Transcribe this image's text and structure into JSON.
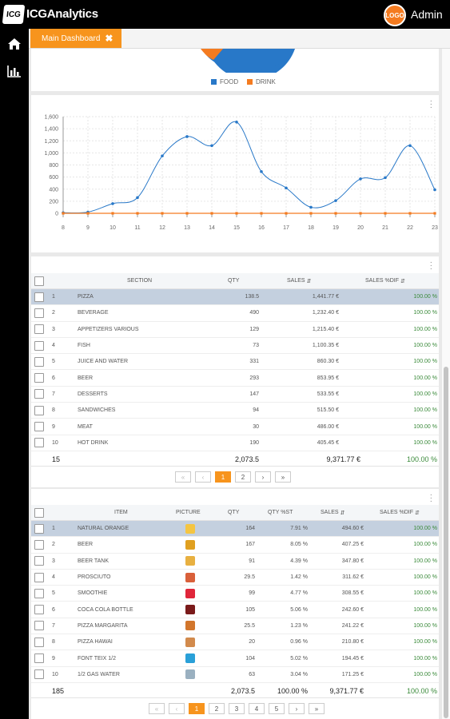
{
  "app": {
    "title": "ICGAnalytics",
    "logo": "ICG",
    "user": "Admin",
    "avatar_text": "LOGO"
  },
  "tab": {
    "label": "Main Dashboard"
  },
  "colors": {
    "accent": "#f7941d",
    "food": "#2878c8",
    "drink": "#f47b20"
  },
  "pie_legend": [
    {
      "label": "FOOD",
      "color": "#2878c8"
    },
    {
      "label": "DRINK",
      "color": "#f47b20"
    }
  ],
  "chart_data": {
    "type": "line",
    "x": [
      8,
      9,
      10,
      11,
      12,
      13,
      14,
      15,
      16,
      17,
      18,
      19,
      20,
      21,
      22,
      23
    ],
    "series": [
      {
        "values": [
          10,
          20,
          160,
          260,
          950,
          1270,
          1120,
          1510,
          690,
          420,
          100,
          210,
          570,
          590,
          1120,
          390
        ],
        "color": "#2878c8"
      },
      {
        "values": [
          0,
          0,
          0,
          0,
          0,
          0,
          0,
          0,
          0,
          0,
          0,
          0,
          0,
          0,
          0,
          0
        ],
        "color": "#f47b20"
      }
    ],
    "yticks": [
      "0",
      "200",
      "400",
      "600",
      "800",
      "1,000",
      "1,200",
      "1,400",
      "1,600"
    ],
    "ylim": [
      0,
      1600
    ],
    "xlim": [
      8,
      23
    ],
    "grid": true
  },
  "section_table": {
    "headers": {
      "section": "SECTION",
      "qty": "QTY",
      "sales": "SALES",
      "sales_dif": "SALES %DIF"
    },
    "rows": [
      {
        "n": "1",
        "name": "PIZZA",
        "qty": "138.5",
        "sales": "1,441.77 €",
        "dif": "100.00 %"
      },
      {
        "n": "2",
        "name": "BEVERAGE",
        "qty": "490",
        "sales": "1,232.40 €",
        "dif": "100.00 %"
      },
      {
        "n": "3",
        "name": "APPETIZERS VARIOUS",
        "qty": "129",
        "sales": "1,215.40 €",
        "dif": "100.00 %"
      },
      {
        "n": "4",
        "name": "FISH",
        "qty": "73",
        "sales": "1,100.35 €",
        "dif": "100.00 %"
      },
      {
        "n": "5",
        "name": "JUICE AND WATER",
        "qty": "331",
        "sales": "860.30 €",
        "dif": "100.00 %"
      },
      {
        "n": "6",
        "name": "BEER",
        "qty": "293",
        "sales": "853.95 €",
        "dif": "100.00 %"
      },
      {
        "n": "7",
        "name": "DESSERTS",
        "qty": "147",
        "sales": "533.55 €",
        "dif": "100.00 %"
      },
      {
        "n": "8",
        "name": "SANDWICHES",
        "qty": "94",
        "sales": "515.50 €",
        "dif": "100.00 %"
      },
      {
        "n": "9",
        "name": "MEAT",
        "qty": "30",
        "sales": "486.00 €",
        "dif": "100.00 %"
      },
      {
        "n": "10",
        "name": "HOT DRINK",
        "qty": "190",
        "sales": "405.45 €",
        "dif": "100.00 %"
      }
    ],
    "footer": {
      "count": "15",
      "qty": "2,073.5",
      "sales": "9,371.77 €",
      "dif": "100.00 %"
    },
    "pages": [
      "1",
      "2"
    ]
  },
  "item_table": {
    "headers": {
      "item": "ITEM",
      "picture": "PICTURE",
      "qty": "QTY",
      "qty_pct": "QTY %ST",
      "sales": "SALES",
      "sales_dif": "SALES %DIF"
    },
    "rows": [
      {
        "n": "1",
        "name": "NATURAL ORANGE",
        "pic": "orange-juice-icon",
        "pic_color": "#f5c542",
        "qty": "164",
        "pct": "7.91 %",
        "sales": "494.60 €",
        "dif": "100.00 %"
      },
      {
        "n": "2",
        "name": "BEER",
        "pic": "beer-bottle-icon",
        "pic_color": "#e0a020",
        "qty": "167",
        "pct": "8.05 %",
        "sales": "407.25 €",
        "dif": "100.00 %"
      },
      {
        "n": "3",
        "name": "BEER TANK",
        "pic": "beer-glass-icon",
        "pic_color": "#e8b040",
        "qty": "91",
        "pct": "4.39 %",
        "sales": "347.80 €",
        "dif": "100.00 %"
      },
      {
        "n": "4",
        "name": "PROSCIUTO",
        "pic": "pizza-icon",
        "pic_color": "#d9603a",
        "qty": "29.5",
        "pct": "1.42 %",
        "sales": "311.62 €",
        "dif": "100.00 %"
      },
      {
        "n": "5",
        "name": "SMOOTHIE",
        "pic": "smoothie-icon",
        "pic_color": "#e0263a",
        "qty": "99",
        "pct": "4.77 %",
        "sales": "308.55 €",
        "dif": "100.00 %"
      },
      {
        "n": "6",
        "name": "COCA COLA BOTTLE",
        "pic": "cola-bottle-icon",
        "pic_color": "#7a1a1a",
        "qty": "105",
        "pct": "5.06 %",
        "sales": "242.60 €",
        "dif": "100.00 %"
      },
      {
        "n": "7",
        "name": "PIZZA MARGARITA",
        "pic": "pizza-icon",
        "pic_color": "#d2762c",
        "qty": "25.5",
        "pct": "1.23 %",
        "sales": "241.22 €",
        "dif": "100.00 %"
      },
      {
        "n": "8",
        "name": "PIZZA HAWAI",
        "pic": "pizza-icon",
        "pic_color": "#d28a4c",
        "qty": "20",
        "pct": "0.96 %",
        "sales": "210.80 €",
        "dif": "100.00 %"
      },
      {
        "n": "9",
        "name": "FONT TEIX 1/2",
        "pic": "water-bottle-icon",
        "pic_color": "#2aa0d8",
        "qty": "104",
        "pct": "5.02 %",
        "sales": "194.45 €",
        "dif": "100.00 %"
      },
      {
        "n": "10",
        "name": "1/2 GAS WATER",
        "pic": "water-bottle-icon",
        "pic_color": "#9ab0c0",
        "qty": "63",
        "pct": "3.04 %",
        "sales": "171.25 €",
        "dif": "100.00 %"
      }
    ],
    "footer": {
      "count": "185",
      "qty": "2,073.5",
      "pct": "100.00 %",
      "sales": "9,371.77 €",
      "dif": "100.00 %"
    },
    "pages": [
      "1",
      "2",
      "3",
      "4",
      "5"
    ]
  },
  "pager_glyphs": {
    "first": "«",
    "prev": "‹",
    "next": "›",
    "last": "»"
  },
  "sort_glyph": "⇵"
}
